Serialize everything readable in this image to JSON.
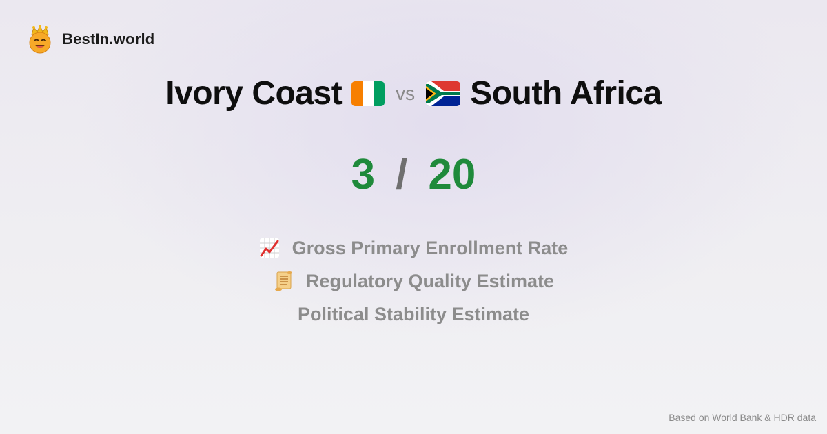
{
  "brand": {
    "name": "BestIn.world",
    "logo_icon": "crown-smiley-icon"
  },
  "comparison": {
    "left_country": "Ivory Coast",
    "left_flag_icon": "ivory-coast-flag-icon",
    "vs_label": "vs",
    "right_country": "South Africa",
    "right_flag_icon": "south-africa-flag-icon"
  },
  "score": {
    "left": "3",
    "separator": "/",
    "right": "20",
    "color": "#1f8a3b"
  },
  "metrics": [
    {
      "label": "Gross Primary Enrollment Rate",
      "icon": "chart-increasing-icon"
    },
    {
      "label": "Regulatory Quality Estimate",
      "icon": "scroll-icon"
    },
    {
      "label": "Political Stability Estimate",
      "icon": ""
    }
  ],
  "footer": {
    "note": "Based on World Bank & HDR data"
  },
  "colors": {
    "accent_green": "#1f8a3b",
    "muted_text": "#8c8c8c"
  }
}
